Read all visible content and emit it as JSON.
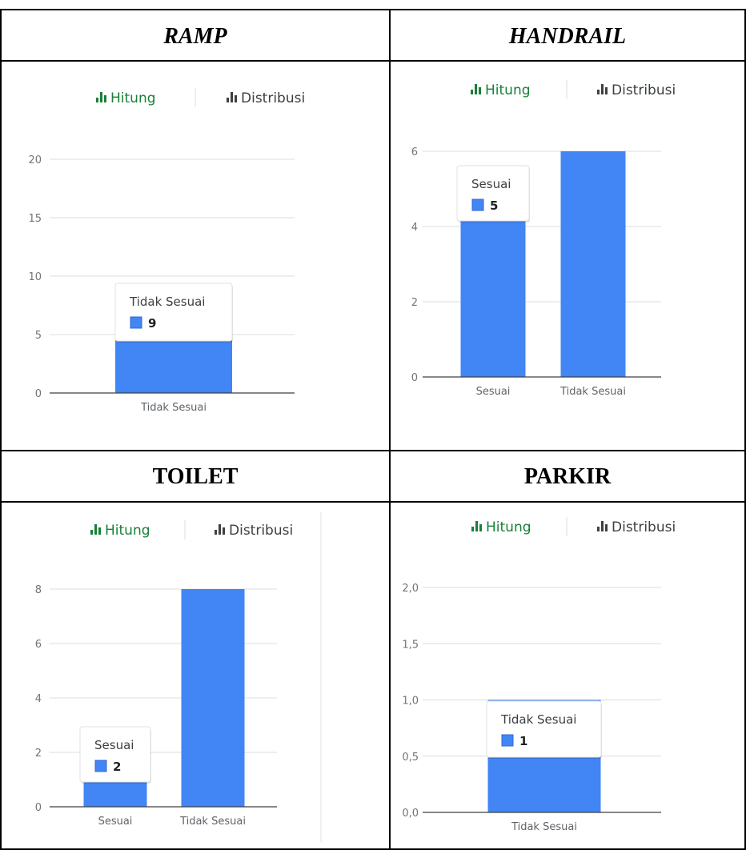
{
  "colors": {
    "bar": "#4285f4",
    "tab_active": "#188038",
    "tab_inactive": "#3c4043"
  },
  "tabs": {
    "count_label": "Hitung",
    "dist_label": "Distribusi",
    "icon": "bar-chart-icon"
  },
  "chart_data": [
    {
      "title": "RAMP",
      "type": "bar",
      "categories": [
        "Tidak Sesuai"
      ],
      "values": [
        9
      ],
      "ylim": [
        0,
        20
      ],
      "yticks": [
        "0",
        "5",
        "10",
        "15",
        "20"
      ],
      "tooltip": {
        "label": "Tidak Sesuai",
        "value": "9"
      },
      "grid": true
    },
    {
      "title": "HANDRAIL",
      "type": "bar",
      "categories": [
        "Sesuai",
        "Tidak Sesuai"
      ],
      "values": [
        5,
        6
      ],
      "ylim": [
        0,
        6
      ],
      "yticks": [
        "0",
        "2",
        "4",
        "6"
      ],
      "tooltip": {
        "label": "Sesuai",
        "value": "5"
      },
      "grid": true
    },
    {
      "title": "TOILET",
      "type": "bar",
      "categories": [
        "Sesuai",
        "Tidak Sesuai"
      ],
      "values": [
        2,
        8
      ],
      "ylim": [
        0,
        8
      ],
      "yticks": [
        "0",
        "2",
        "4",
        "6",
        "8"
      ],
      "tooltip": {
        "label": "Sesuai",
        "value": "2"
      },
      "grid": true
    },
    {
      "title": "PARKIR",
      "type": "bar",
      "categories": [
        "Tidak Sesuai"
      ],
      "values": [
        1
      ],
      "ylim": [
        0,
        2
      ],
      "yticks": [
        "0,0",
        "0,5",
        "1,0",
        "1,5",
        "2,0"
      ],
      "tooltip": {
        "label": "Tidak Sesuai",
        "value": "1"
      },
      "grid": true
    }
  ]
}
